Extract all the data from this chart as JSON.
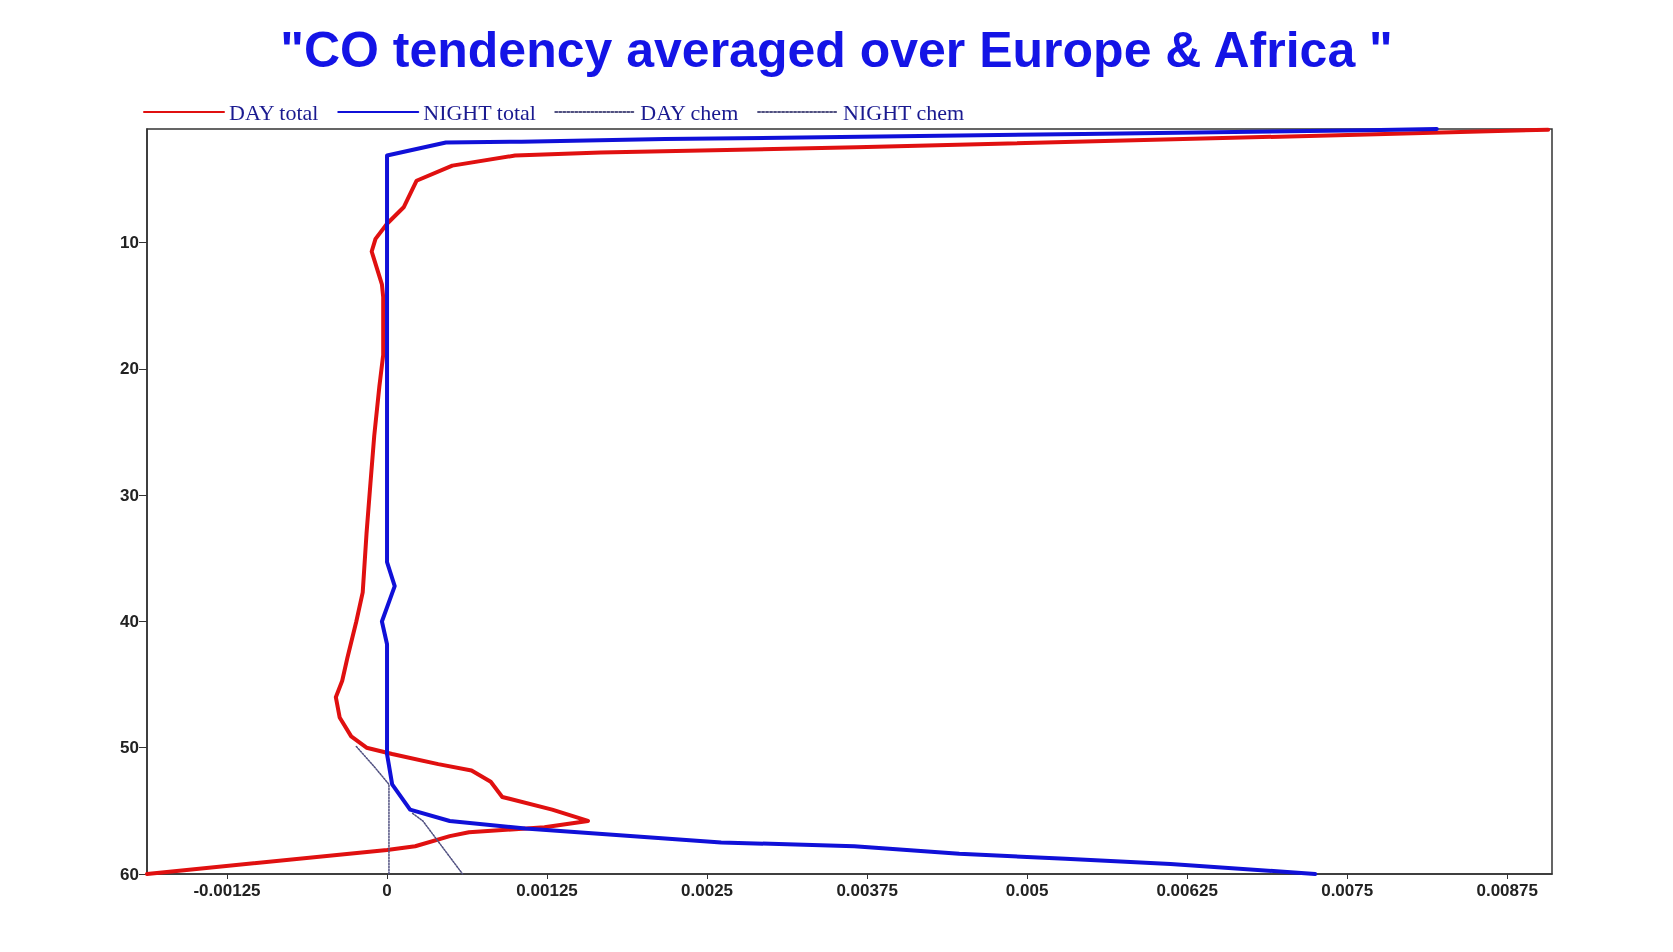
{
  "chart_data": {
    "type": "line",
    "title": "\"CO tendency averaged over Europe & Africa \"",
    "legend": "top left",
    "grid": false,
    "marker": "none",
    "xlim": [
      -0.001875,
      0.0091
    ],
    "xticks": [
      -0.00125,
      0,
      0.00125,
      0.0025,
      0.00375,
      0.005,
      0.00625,
      0.0075,
      0.00875
    ],
    "ylim": [
      60,
      1
    ],
    "yticks": [
      10,
      20,
      30,
      40,
      50,
      60
    ],
    "series": [
      {
        "name": "DAY total",
        "color": "#e01010",
        "line_style": "solid",
        "x": [
          0.00907,
          0.00758,
          0.00367,
          0.00167,
          0.001,
          0.00051,
          0.00023,
          0.00013,
          0,
          -9e-05,
          -0.00012,
          -4e-05,
          -3e-05,
          -3e-05,
          -6e-05,
          -0.0001,
          -0.00013,
          -0.00016,
          -0.00019,
          -0.00024,
          -0.00031,
          -0.00035,
          -0.0004,
          -0.00037,
          -0.00028,
          -0.00016,
          4e-05,
          0.0004,
          0.00066,
          0.00081,
          0.0009,
          0.00129,
          0.00157,
          0.00123,
          0.00064,
          0.00049,
          0.00022,
          0,
          -0.001875
        ],
        "values": [
          1.05,
          1.45,
          2.45,
          2.86,
          3.1,
          3.9,
          5.1,
          7.2,
          8.5,
          9.7,
          10.7,
          13.3,
          14.3,
          18.9,
          21.4,
          25.3,
          29.1,
          33,
          37.7,
          40,
          42.9,
          44.7,
          46,
          47.6,
          49.1,
          50,
          50.5,
          51.3,
          51.8,
          52.7,
          53.9,
          54.9,
          55.8,
          56.3,
          56.7,
          57,
          57.8,
          58.1,
          60
        ]
      },
      {
        "name": "NIGHT total",
        "color": "#1010d8",
        "line_style": "solid",
        "x": [
          0.0082,
          0.00765,
          0.00544,
          0.00217,
          0.00105,
          0.00046,
          0,
          0,
          6e-05,
          -4e-05,
          0,
          0,
          4e-05,
          0.00018,
          0.00049,
          0.00108,
          0.00261,
          0.00365,
          0.00447,
          0.0053,
          0.00612,
          0.00725
        ],
        "values": [
          1,
          1.1,
          1.4,
          1.8,
          2,
          2.07,
          3.1,
          35.3,
          37.2,
          40,
          41.8,
          50.5,
          52.9,
          54.9,
          55.8,
          56.4,
          57.5,
          57.8,
          58.4,
          58.8,
          59.2,
          60
        ]
      },
      {
        "name": "DAY chem",
        "color": "#505080",
        "line_style": "dotted",
        "x": [
          -0.00024,
          -0.0001,
          1.5e-05,
          1.5e-05
        ],
        "values": [
          49.9,
          51.5,
          52.9,
          60
        ]
      },
      {
        "name": "NIGHT chem",
        "color": "#505080",
        "line_style": "dotted",
        "x": [
          0.0002,
          0.00028,
          0.00059
        ],
        "values": [
          55.2,
          55.8,
          60
        ]
      }
    ]
  }
}
